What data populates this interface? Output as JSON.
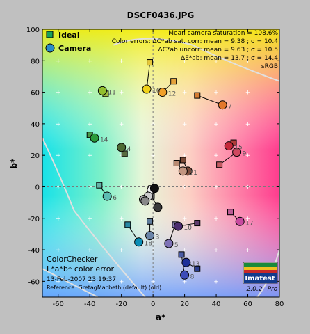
{
  "chart_data": {
    "type": "scatter",
    "title": "DSCF0436.JPG",
    "xlabel": "a*",
    "ylabel": "b*",
    "xlim": [
      -70,
      80
    ],
    "ylim": [
      -70,
      100
    ],
    "x_ticks": [
      -60,
      -40,
      -20,
      0,
      20,
      40,
      60,
      80
    ],
    "y_ticks": [
      -60,
      -40,
      -20,
      0,
      20,
      40,
      60,
      80,
      100
    ],
    "legend": {
      "ideal_label": "Ideal",
      "camera_label": "Camera",
      "placement": "top-left"
    },
    "stats": [
      "Mean camera saturation = 108.6%",
      "Color errors: ΔC*ab sat. corr: mean = 9.38 ; σ = 10.4",
      "ΔC*ab uncorr: mean = 9.63 ; σ = 10.5",
      "ΔE*ab: mean = 13.7 ; σ = 14.4",
      "sRGB"
    ],
    "caption_lines": [
      "ColorChecker",
      "L*a*b* color error",
      "13-Feb-2007 23:19:37",
      "Reference: GretagMacbeth (default) (old)"
    ],
    "logo": {
      "name": "Imatest",
      "version": "2.0.2",
      "edition": "Pro"
    },
    "patches": [
      {
        "n": "1",
        "ideal": [
          19,
          17
        ],
        "camera": [
          22,
          10
        ],
        "ideal_color": "#7a4a36",
        "camera_color": "#7c4b3a"
      },
      {
        "n": "2",
        "ideal": [
          15,
          15
        ],
        "camera": [
          19,
          10
        ],
        "ideal_color": "#b98a72",
        "camera_color": "#c29580"
      },
      {
        "n": "3",
        "ideal": [
          -2,
          -22
        ],
        "camera": [
          -2,
          -31
        ],
        "ideal_color": "#5f7c9c",
        "camera_color": "#6a84a8"
      },
      {
        "n": "4",
        "ideal": [
          -18,
          21
        ],
        "camera": [
          -20,
          25
        ],
        "ideal_color": "#586b40",
        "camera_color": "#4e6a34"
      },
      {
        "n": "5",
        "ideal": [
          14,
          -24
        ],
        "camera": [
          10,
          -36
        ],
        "ideal_color": "#8a7eb0",
        "camera_color": "#7e72b6"
      },
      {
        "n": "6",
        "ideal": [
          -34,
          1
        ],
        "camera": [
          -29,
          -6
        ],
        "ideal_color": "#66b3a8",
        "camera_color": "#5cbcb2"
      },
      {
        "n": "7",
        "ideal": [
          28,
          58
        ],
        "camera": [
          44,
          52
        ],
        "ideal_color": "#d67c32",
        "camera_color": "#e2772a"
      },
      {
        "n": "8",
        "ideal": [
          18,
          -43
        ],
        "camera": [
          20,
          -56
        ],
        "ideal_color": "#4a5ba4",
        "camera_color": "#3c4cb8"
      },
      {
        "n": "9",
        "ideal": [
          42,
          14
        ],
        "camera": [
          53,
          22
        ],
        "ideal_color": "#c25a62",
        "camera_color": "#d04860"
      },
      {
        "n": "10",
        "ideal": [
          28,
          -23
        ],
        "camera": [
          16,
          -25
        ],
        "ideal_color": "#5e3c6c",
        "camera_color": "#4c2c6e"
      },
      {
        "n": "11",
        "ideal": [
          -30,
          59
        ],
        "camera": [
          -32,
          61
        ],
        "ideal_color": "#9fbc40",
        "camera_color": "#92c02e"
      },
      {
        "n": "12",
        "ideal": [
          13,
          67
        ],
        "camera": [
          6,
          60
        ],
        "ideal_color": "#e4a23c",
        "camera_color": "#f0a02a"
      },
      {
        "n": "13",
        "ideal": [
          28,
          -52
        ],
        "camera": [
          21,
          -48
        ],
        "ideal_color": "#2a3c8c",
        "camera_color": "#1e3098"
      },
      {
        "n": "14",
        "ideal": [
          -40,
          33
        ],
        "camera": [
          -37,
          31
        ],
        "ideal_color": "#489848",
        "camera_color": "#2a9a3a"
      },
      {
        "n": "15",
        "ideal": [
          51,
          28
        ],
        "camera": [
          48,
          26
        ],
        "ideal_color": "#b03c3a",
        "camera_color": "#c4283a"
      },
      {
        "n": "16",
        "ideal": [
          -2,
          79
        ],
        "camera": [
          -4,
          62
        ],
        "ideal_color": "#e6c83a",
        "camera_color": "#f0d21a"
      },
      {
        "n": "17",
        "ideal": [
          49,
          -16
        ],
        "camera": [
          55,
          -22
        ],
        "ideal_color": "#bc5c96",
        "camera_color": "#c84aa0"
      },
      {
        "n": "18",
        "ideal": [
          -16,
          -24
        ],
        "camera": [
          -9,
          -35
        ],
        "ideal_color": "#2888a4",
        "camera_color": "#0a8eb6"
      },
      {
        "n": "",
        "ideal": [
          -1,
          -2
        ],
        "camera": [
          -1,
          -2
        ],
        "ideal_color": "#f2f2f2",
        "camera_color": "#f2f2f2"
      },
      {
        "n": "",
        "ideal": [
          -1,
          -3
        ],
        "camera": [
          -3,
          -6
        ],
        "ideal_color": "#c8c8c8",
        "camera_color": "#cccccc"
      },
      {
        "n": "",
        "ideal": [
          -1,
          -4
        ],
        "camera": [
          -6,
          -8
        ],
        "ideal_color": "#a0a0a0",
        "camera_color": "#aaaaaa"
      },
      {
        "n": "",
        "ideal": [
          -1,
          -5
        ],
        "camera": [
          -5,
          -9
        ],
        "ideal_color": "#7a7a7a",
        "camera_color": "#888888"
      },
      {
        "n": "",
        "ideal": [
          -1,
          -6
        ],
        "camera": [
          3,
          -13
        ],
        "ideal_color": "#555555",
        "camera_color": "#3a3a3a"
      },
      {
        "n": "",
        "ideal": [
          -1,
          -1
        ],
        "camera": [
          1,
          -1
        ],
        "ideal_color": "#343434",
        "camera_color": "#111111"
      }
    ]
  }
}
